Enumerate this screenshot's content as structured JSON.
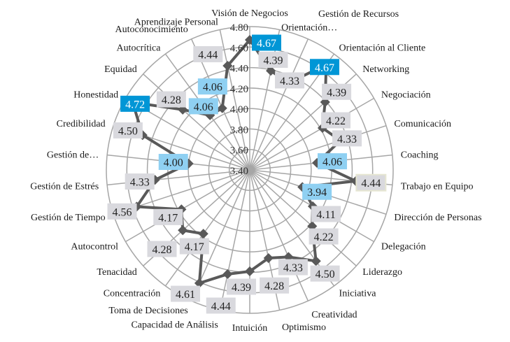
{
  "chart_data": {
    "type": "radar",
    "categories": [
      "Visión de Negocios",
      "Orientación…",
      "Gestión de Recursos",
      "Orientación al Cliente",
      "Networking",
      "Negociación",
      "Comunicación",
      "Coaching",
      "Trabajo en Equipo",
      "Dirección de Personas",
      "Delegación",
      "Liderazgo",
      "Iniciativa",
      "Creatividad",
      "Optimismo",
      "Intuición",
      "Capacidad de Análisis",
      "Toma de Decisiones",
      "Concentración",
      "Tenacidad",
      "Autocontrol",
      "Gestión de Tiempo",
      "Gestión de Estrés",
      "Gestión de…",
      "Credibilidad",
      "Honestidad",
      "Equidad",
      "Autocrítica",
      "Autoconocimiento",
      "Aprendizaje Personal"
    ],
    "values": [
      4.67,
      4.39,
      4.33,
      4.67,
      4.39,
      4.22,
      4.33,
      4.06,
      4.44,
      3.94,
      4.11,
      4.22,
      4.5,
      4.33,
      4.28,
      4.39,
      4.44,
      4.61,
      4.17,
      4.28,
      4.17,
      4.56,
      4.33,
      4.0,
      4.5,
      4.72,
      4.28,
      4.06,
      4.06,
      4.44
    ],
    "data_labels": [
      "4.67",
      "4.39",
      "4.33",
      "4.67",
      "4.39",
      "4.22",
      "4.33",
      "4.06",
      "4.44",
      "3.94",
      "4.11",
      "4.22",
      "4.50",
      "4.33",
      "4.28",
      "4.39",
      "4.44",
      "4.61",
      "4.17",
      "4.28",
      "4.17",
      "4.56",
      "4.33",
      "4.00",
      "4.50",
      "4.72",
      "4.28",
      "4.06",
      "4.06",
      "4.44"
    ],
    "rlim": [
      3.4,
      4.8
    ],
    "ticks": [
      "3.40",
      "3.60",
      "3.80",
      "4.00",
      "4.20",
      "4.40",
      "4.60",
      "4.80"
    ],
    "grid": true,
    "line_color": "#595959",
    "label_colors": {
      "high": "#0096d6",
      "low": "#8fd0f2",
      "normal": "#d9d9de",
      "highlight_border": "#e6e6d2"
    }
  }
}
